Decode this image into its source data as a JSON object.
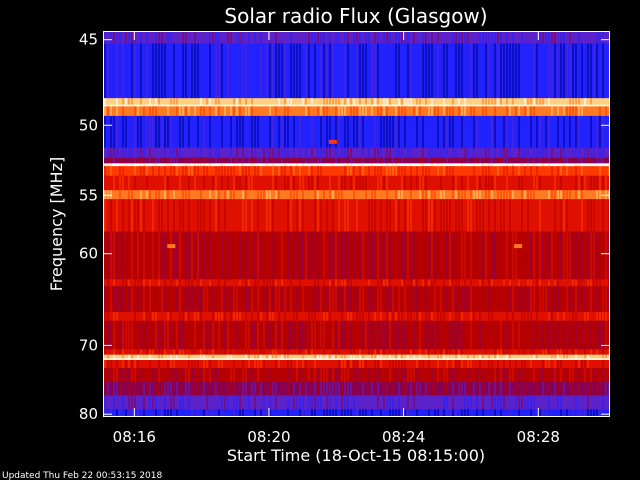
{
  "chart_data": {
    "type": "heatmap",
    "title": "Solar radio Flux (Glasgow)",
    "xlabel": "Start Time (18-Oct-15 08:15:00)",
    "ylabel": "Frequency [MHz]",
    "x_ticks": [
      "08:16",
      "08:20",
      "08:24",
      "08:28"
    ],
    "x_tick_minutes": [
      1,
      5,
      9,
      13
    ],
    "xlim_minutes": [
      0.1,
      15.1
    ],
    "y_ticks": [
      45,
      50,
      55,
      60,
      70,
      80
    ],
    "ylim": [
      44.6,
      80.3
    ],
    "y_scale": "reciprocal",
    "colormap": [
      "#000090",
      "#2222ff",
      "#5a22c8",
      "#8a0050",
      "#b40000",
      "#e01000",
      "#ff3a00",
      "#ff7a20",
      "#ffd080",
      "#ffffff"
    ],
    "bands": [
      {
        "start": 44.6,
        "end": 45.2,
        "level": 2
      },
      {
        "start": 45.2,
        "end": 48.3,
        "level": 1
      },
      {
        "start": 48.3,
        "end": 48.7,
        "level": 8
      },
      {
        "start": 48.7,
        "end": 48.8,
        "level": 9
      },
      {
        "start": 48.8,
        "end": 49.4,
        "level": 7
      },
      {
        "start": 49.4,
        "end": 51.5,
        "level": 1
      },
      {
        "start": 51.5,
        "end": 52.2,
        "level": 2
      },
      {
        "start": 52.2,
        "end": 52.6,
        "level": 3
      },
      {
        "start": 52.6,
        "end": 52.8,
        "level": 9
      },
      {
        "start": 52.8,
        "end": 53.5,
        "level": 6
      },
      {
        "start": 53.5,
        "end": 54.6,
        "level": 5
      },
      {
        "start": 54.6,
        "end": 55.3,
        "level": 7
      },
      {
        "start": 55.3,
        "end": 58.0,
        "level": 5
      },
      {
        "start": 58.0,
        "end": 62.5,
        "level": 4
      },
      {
        "start": 62.5,
        "end": 63.2,
        "level": 5
      },
      {
        "start": 63.2,
        "end": 66.0,
        "level": 4
      },
      {
        "start": 66.0,
        "end": 67.0,
        "level": 5
      },
      {
        "start": 67.0,
        "end": 70.5,
        "level": 4
      },
      {
        "start": 70.5,
        "end": 71.2,
        "level": 5
      },
      {
        "start": 71.2,
        "end": 71.7,
        "level": 8
      },
      {
        "start": 71.7,
        "end": 71.9,
        "level": 9
      },
      {
        "start": 71.9,
        "end": 73.0,
        "level": 5
      },
      {
        "start": 73.0,
        "end": 75.0,
        "level": 4
      },
      {
        "start": 75.0,
        "end": 77.0,
        "level": 3
      },
      {
        "start": 77.0,
        "end": 79.2,
        "level": 2
      },
      {
        "start": 79.2,
        "end": 80.3,
        "level": 1
      }
    ],
    "highlights": [
      {
        "minute": 2.1,
        "freq": 59.3,
        "level": 7
      },
      {
        "minute": 12.4,
        "freq": 59.3,
        "level": 7
      },
      {
        "minute": 6.9,
        "freq": 51.1,
        "level": 6
      }
    ]
  },
  "footer": {
    "updated": "Updated Thu Feb 22 00:53:15 2018"
  }
}
